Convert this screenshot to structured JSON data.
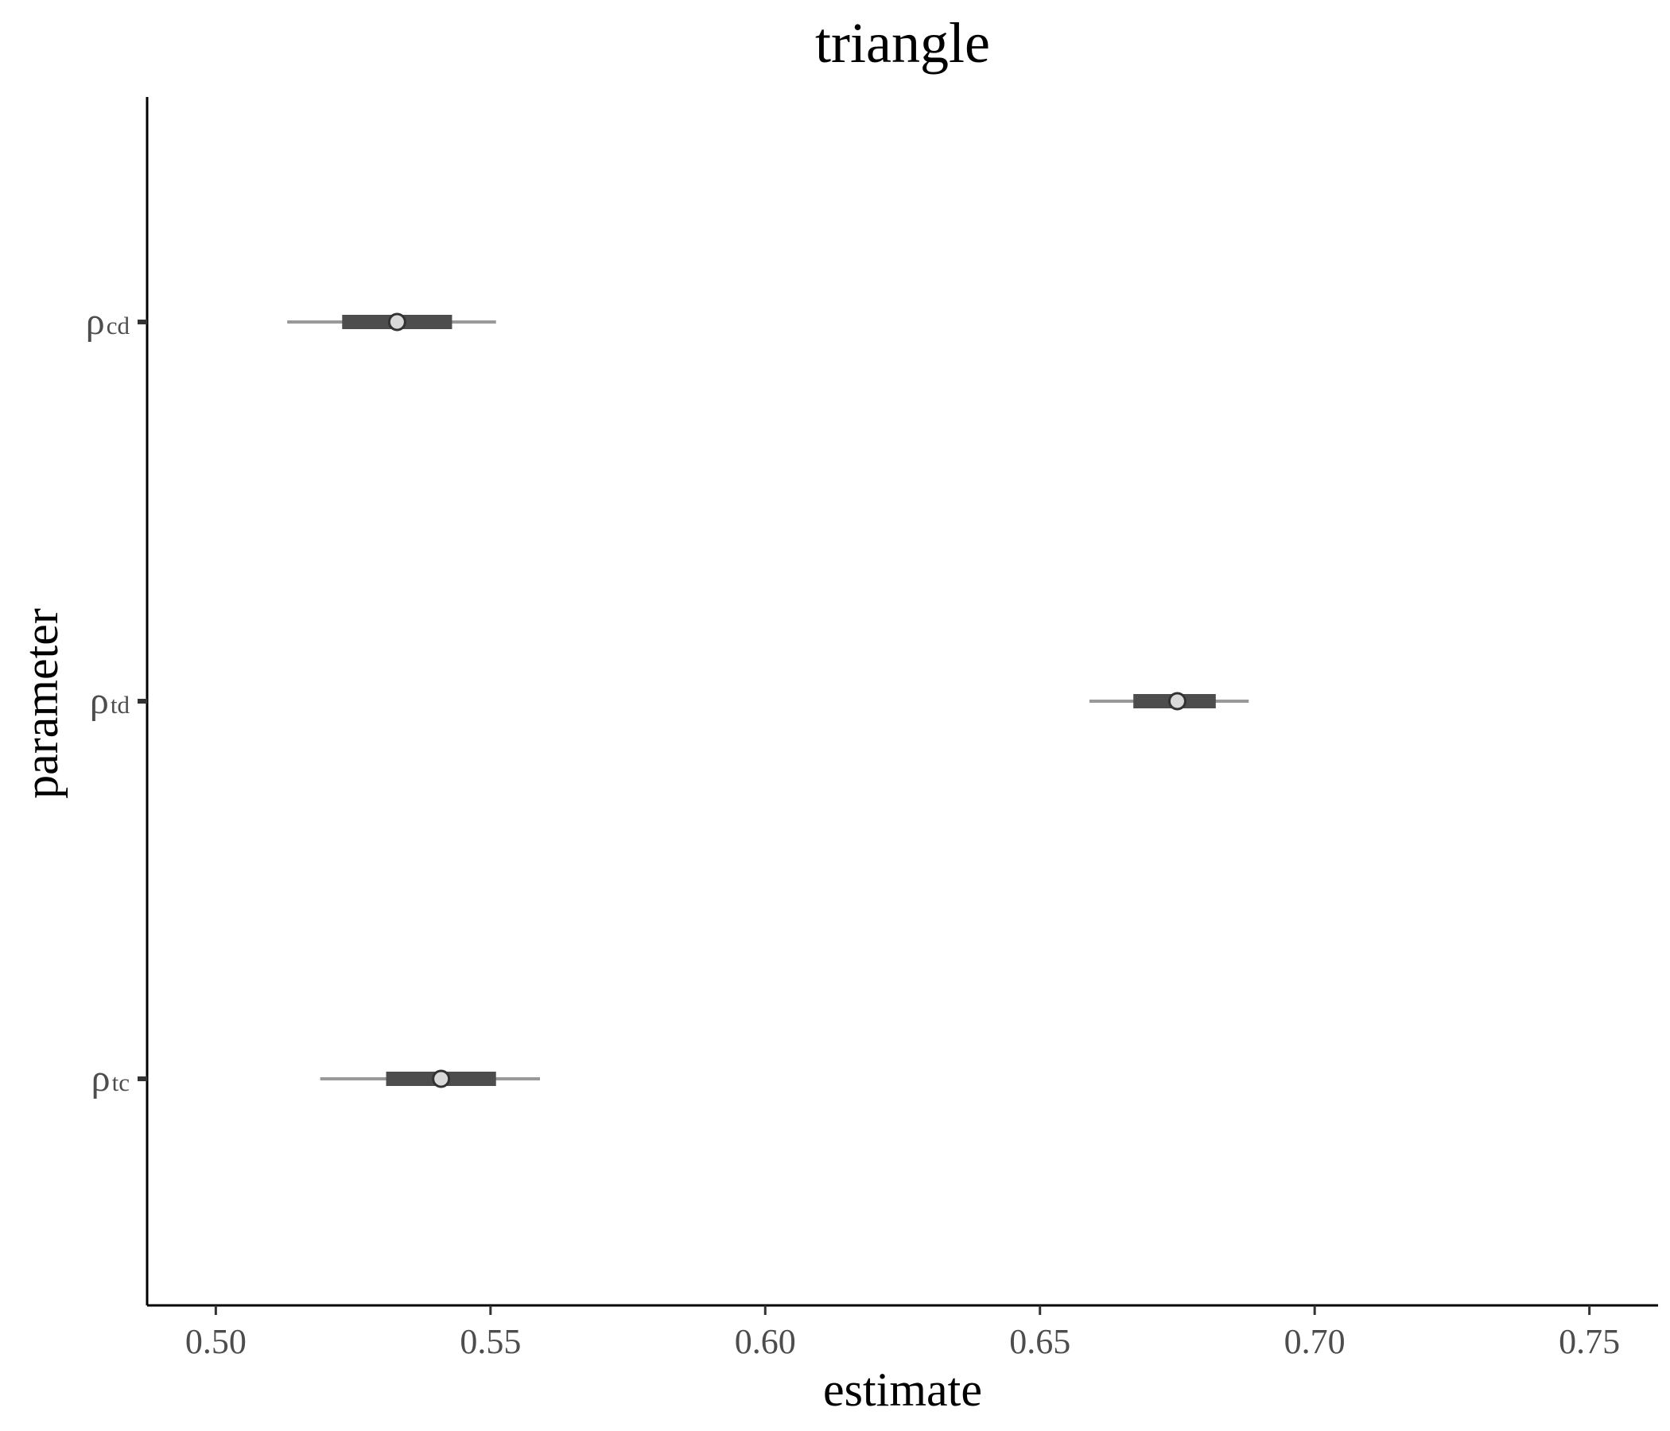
{
  "chart_data": {
    "type": "interval",
    "title": "triangle",
    "xlabel": "estimate",
    "ylabel": "parameter",
    "xlim": [
      0.4875,
      0.7625
    ],
    "x_ticks": [
      0.5,
      0.55,
      0.6,
      0.65,
      0.7,
      0.75
    ],
    "x_tick_labels": [
      "0.50",
      "0.55",
      "0.60",
      "0.65",
      "0.70",
      "0.75"
    ],
    "categories": [
      {
        "symbol": "ρ",
        "subscript": "cd"
      },
      {
        "symbol": "ρ",
        "subscript": "td"
      },
      {
        "symbol": "ρ",
        "subscript": "tc"
      }
    ],
    "values": [
      {
        "estimate": 0.533,
        "inner": [
          0.523,
          0.543
        ],
        "outer": [
          0.513,
          0.551
        ]
      },
      {
        "estimate": 0.675,
        "inner": [
          0.667,
          0.682
        ],
        "outer": [
          0.659,
          0.688
        ]
      },
      {
        "estimate": 0.541,
        "inner": [
          0.531,
          0.551
        ],
        "outer": [
          0.519,
          0.559
        ]
      }
    ],
    "grid": false,
    "colors": {
      "outer_interval": "#999999",
      "inner_interval": "#4d4d4d",
      "point_fill": "#d9d9d9",
      "point_stroke": "#333333",
      "axis": "#000000"
    }
  }
}
